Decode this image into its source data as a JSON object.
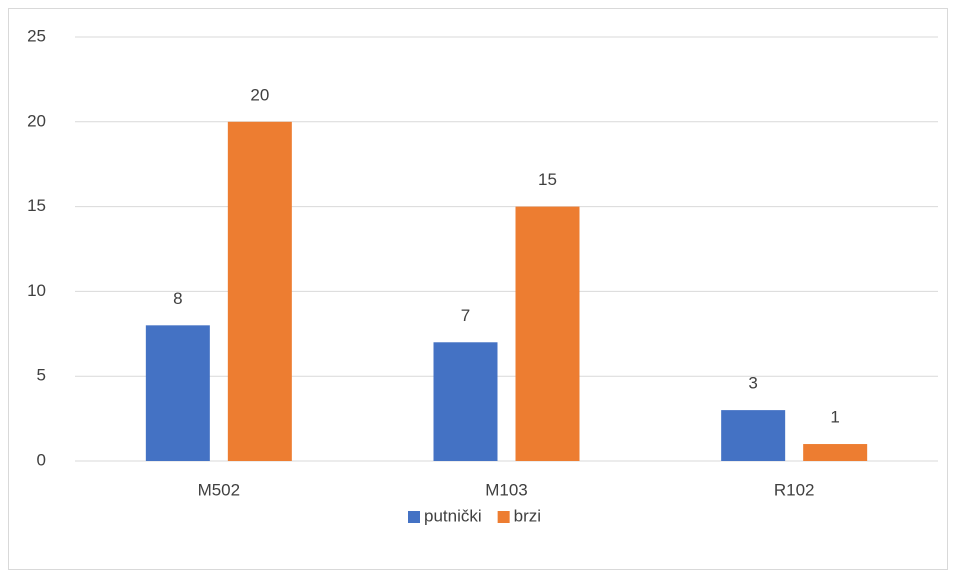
{
  "chart_data": {
    "type": "bar",
    "categories": [
      "M502",
      "M103",
      "R102"
    ],
    "series": [
      {
        "name": "putnički",
        "color": "#4472c4",
        "values": [
          8,
          7,
          3
        ]
      },
      {
        "name": "brzi",
        "color": "#ed7d31",
        "values": [
          20,
          15,
          1
        ]
      }
    ],
    "ylim": [
      0,
      25
    ],
    "yticks": [
      0,
      5,
      10,
      15,
      20,
      25
    ],
    "grid": true,
    "legend": "bottom"
  }
}
